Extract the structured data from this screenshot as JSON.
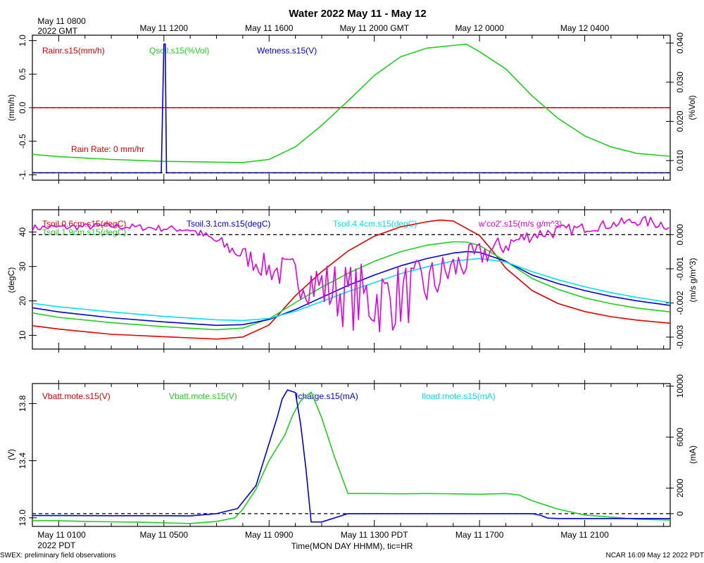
{
  "title": "Water 2022 May 11 - May 12",
  "time_axis": {
    "top_labels": [
      {
        "t": 0,
        "line1": "May 11 0800",
        "line2": "2022 GMT"
      },
      {
        "t": 4,
        "line1": "May 11 1200"
      },
      {
        "t": 8,
        "line1": "May 11 1600"
      },
      {
        "t": 12,
        "line1": "May 11 2000 GMT"
      },
      {
        "t": 16,
        "line1": "May 12 0000"
      },
      {
        "t": 20,
        "line1": "May 12 0400"
      }
    ],
    "bottom_labels": [
      {
        "t": 0,
        "line1": "May 11 0100",
        "line2": "2022 PDT"
      },
      {
        "t": 4,
        "line1": "May 11 0500"
      },
      {
        "t": 8,
        "line1": "May 11 0900"
      },
      {
        "t": 12,
        "line1": "May 11 1300 PDT"
      },
      {
        "t": 16,
        "line1": "May 11 1700"
      },
      {
        "t": 20,
        "line1": "May 11 2100"
      }
    ],
    "xlabel": "Time(MON DAY HHMM), tic=HR",
    "range_hours": [
      -1,
      23.25
    ]
  },
  "footer": {
    "left": "SWEX: preliminary field observations",
    "right": "NCAR 16:09 May 12 2022 PDT"
  },
  "colors": {
    "red": "#e00000",
    "green": "#1ed01e",
    "blue": "#0000d8",
    "cyan": "#00e0ee",
    "magenta": "#e000e0"
  },
  "chart_data": [
    {
      "type": "line",
      "panel": "rain-wetness",
      "ylabel_left": "(mm/h)",
      "ylabel_right": "(%Vol)",
      "ylim_left": [
        -1.08,
        1.08
      ],
      "ylim_right": [
        0.005,
        0.042
      ],
      "yticks_left": [
        "1.0",
        "0.5",
        "0.0",
        "-0.5",
        "-1."
      ],
      "yticks_left_values": [
        1.0,
        0.5,
        0.0,
        -0.5,
        -1.0
      ],
      "yticks_right": [
        "0.040",
        "0.030",
        "0.020",
        "0.010"
      ],
      "yticks_right_values": [
        0.04,
        0.03,
        0.02,
        0.01
      ],
      "legend": [
        "Rainr.s15(mm/h)",
        "Qsoil.s15(%Vol)",
        "Wetness.s15(V)"
      ],
      "annotation": "Rain Rate: 0 mm/hr",
      "baseline_left": 0.0,
      "series": [
        {
          "name": "Rainr.s15(mm/h)",
          "axis": "left",
          "color": "red",
          "x": [
            -1,
            23.25
          ],
          "y": [
            0.0,
            0.0
          ]
        },
        {
          "name": "Qsoil.s15(%Vol)",
          "axis": "right",
          "color": "green",
          "x": [
            -1,
            0,
            2,
            4,
            5,
            6,
            7,
            8,
            9,
            10,
            11,
            12,
            13,
            14,
            15,
            15.5,
            16,
            17,
            18,
            19,
            20,
            21,
            22,
            23.25
          ],
          "y": [
            0.0116,
            0.011,
            0.0103,
            0.0098,
            0.0097,
            0.0096,
            0.0095,
            0.0103,
            0.0135,
            0.019,
            0.0252,
            0.0317,
            0.0365,
            0.0387,
            0.0394,
            0.0397,
            0.0378,
            0.0334,
            0.0265,
            0.0207,
            0.0163,
            0.0135,
            0.0118,
            0.0111
          ]
        },
        {
          "name": "Wetness.s15(V)",
          "axis": "left",
          "color": "blue",
          "x": [
            -1,
            3.9,
            4.0,
            4.05,
            4.1,
            23.25
          ],
          "y": [
            -0.97,
            -0.97,
            0.95,
            0.95,
            -0.97,
            -0.97
          ]
        },
        {
          "name": "Wetness baseline",
          "axis": "left",
          "color": "black",
          "dashed": true,
          "x": [
            -1,
            23.25
          ],
          "y": [
            -0.97,
            -0.97
          ]
        }
      ]
    },
    {
      "type": "line",
      "panel": "soil-temperature",
      "ylabel_left": "(degC)",
      "ylabel_right": "(m/s g/m^3)",
      "ylim_left": [
        6.0,
        46.5
      ],
      "ylim_right": [
        -0.00335,
        0.00073
      ],
      "yticks_left": [
        "40",
        "30",
        "20",
        "10"
      ],
      "yticks_left_values": [
        40,
        30,
        20,
        10
      ],
      "yticks_right": [
        "0.000",
        "-0.001",
        "-0.002",
        "-0.003"
      ],
      "yticks_right_values": [
        0.0,
        -0.001,
        -0.002,
        -0.003
      ],
      "legend": [
        "Tsoil.0.6cm.s15(degC)",
        "Tsoil.1.9cm.s15(degC)",
        "Tsoil.3.1cm.s15(degC)",
        "Tsoil.4.4cm.s15(degC)",
        "w'co2'.s15(m/s g/m^3)"
      ],
      "baseline_right": 0.0,
      "series": [
        {
          "name": "Tsoil.0.6cm.s15(degC)",
          "axis": "left",
          "color": "red",
          "x": [
            -1,
            0,
            2,
            4,
            6,
            7,
            8,
            9,
            10,
            11,
            12,
            13,
            14,
            14.5,
            15,
            16,
            16.5,
            17,
            18,
            19,
            20,
            21,
            22,
            23.25
          ],
          "y": [
            12.8,
            11.8,
            10.3,
            9.6,
            8.9,
            9.5,
            13.0,
            21.5,
            28.5,
            34.5,
            38.8,
            41.5,
            43.0,
            43.5,
            43.2,
            39.0,
            34.5,
            29.5,
            23.0,
            19.2,
            16.9,
            15.4,
            14.4,
            13.5
          ]
        },
        {
          "name": "Tsoil.1.9cm.s15(degC)",
          "axis": "left",
          "color": "green",
          "x": [
            -1,
            0,
            2,
            4,
            6,
            7,
            8,
            9,
            10,
            11,
            12,
            13,
            14,
            15,
            15.5,
            16,
            17,
            18,
            19,
            20,
            21,
            22,
            23.25
          ],
          "y": [
            16.5,
            15.2,
            13.7,
            12.5,
            11.6,
            12.1,
            14.8,
            19.5,
            24.0,
            28.0,
            31.5,
            34.3,
            36.2,
            37.2,
            37.1,
            36.1,
            31.5,
            26.5,
            23.3,
            20.9,
            19.2,
            17.9,
            16.8
          ]
        },
        {
          "name": "Tsoil.3.1cm.s15(degC)",
          "axis": "left",
          "color": "blue",
          "x": [
            -1,
            0,
            2,
            4,
            6,
            7,
            8,
            9,
            10,
            11,
            12,
            13,
            14,
            15,
            15.5,
            16,
            17,
            18,
            19,
            20,
            21,
            22,
            23.25
          ],
          "y": [
            18.0,
            16.8,
            15.1,
            13.9,
            12.9,
            13.1,
            14.6,
            17.5,
            21.0,
            24.5,
            27.5,
            30.2,
            32.3,
            33.9,
            34.3,
            34.1,
            31.5,
            27.5,
            25.0,
            23.0,
            21.3,
            20.0,
            18.7
          ]
        },
        {
          "name": "Tsoil.4.4cm.s15(degC)",
          "axis": "left",
          "color": "cyan",
          "x": [
            -1,
            0,
            2,
            4,
            6,
            7,
            8,
            9,
            10,
            11,
            12,
            13,
            14,
            15,
            16,
            17,
            18,
            19,
            20,
            21,
            22,
            23.25
          ],
          "y": [
            19.3,
            18.3,
            16.8,
            15.5,
            14.5,
            14.3,
            14.9,
            17.0,
            19.8,
            22.7,
            25.3,
            27.9,
            29.9,
            31.6,
            32.3,
            31.3,
            28.5,
            26.1,
            24.1,
            22.4,
            21.0,
            19.5
          ]
        },
        {
          "name": "w'co2'.s15(m/s g/m^3)",
          "axis": "right",
          "color": "magenta",
          "noise": true,
          "x": [
            -1,
            2,
            5,
            6,
            7,
            8,
            9,
            10,
            11,
            12,
            13,
            14,
            15,
            16,
            17,
            18,
            19,
            20,
            21,
            22,
            23.25
          ],
          "y": [
            0.0002,
            0.00025,
            0.00015,
            -0.0002,
            -0.0006,
            -0.001,
            -0.0012,
            -0.0015,
            -0.0018,
            -0.0019,
            -0.0018,
            -0.0015,
            -0.001,
            -0.0006,
            -0.0003,
            0.0,
            0.0001,
            0.0002,
            0.0003,
            0.0004,
            0.0003
          ],
          "amp": [
            0.0001,
            0.0001,
            0.0001,
            0.0002,
            0.0003,
            0.0004,
            0.0006,
            0.0008,
            0.001,
            0.0011,
            0.001,
            0.0008,
            0.0006,
            0.0004,
            0.0003,
            0.0002,
            0.0002,
            0.00015,
            0.00015,
            0.00015,
            0.0002
          ]
        }
      ]
    },
    {
      "type": "line",
      "panel": "battery-current",
      "ylabel_left": "(V)",
      "ylabel_right": "(mA)",
      "ylim_left": [
        12.94,
        13.94
      ],
      "ylim_right": [
        -1000,
        10200
      ],
      "yticks_left": [
        "13.8",
        "13.4",
        "13.0"
      ],
      "yticks_left_values": [
        13.8,
        13.4,
        13.0
      ],
      "yticks_right": [
        "10000",
        "6000",
        "2000",
        "0"
      ],
      "yticks_right_values": [
        10000,
        6000,
        2000,
        0
      ],
      "legend": [
        "Vbatt.mote.s15(V)",
        "Vbatt.mote.s15(V)",
        "Icharge.s15(mA)",
        "Iload.mote.s15(mA)"
      ],
      "baseline_right": 0,
      "series": [
        {
          "name": "Vbatt.mote.s15(V)",
          "axis": "left",
          "color": "green",
          "x": [
            -1,
            0,
            1,
            2,
            3,
            4,
            5,
            6,
            6.7,
            7,
            7.5,
            8,
            8.6,
            8.9,
            9.2,
            9.6,
            10,
            10.5,
            11,
            12,
            13,
            14,
            15,
            16,
            17,
            17.5,
            18,
            19,
            20,
            21,
            22,
            23.25
          ],
          "y": [
            12.98,
            12.98,
            12.975,
            12.972,
            12.97,
            12.965,
            12.96,
            12.975,
            13.0,
            13.06,
            13.2,
            13.4,
            13.58,
            13.72,
            13.82,
            13.88,
            13.7,
            13.42,
            13.17,
            13.17,
            13.168,
            13.17,
            13.168,
            13.165,
            13.17,
            13.16,
            13.12,
            13.06,
            13.02,
            13.005,
            12.99,
            12.985
          ]
        },
        {
          "name": "Icharge.s15(mA)",
          "axis": "right",
          "color": "blue",
          "x": [
            -1,
            0,
            2,
            4,
            5,
            6,
            6.8,
            7.5,
            8,
            8.3,
            8.5,
            8.7,
            9.0,
            9.2,
            9.4,
            9.6,
            10,
            11,
            12,
            13,
            14,
            15,
            16,
            17,
            18,
            18.3,
            18.6,
            19,
            20,
            21,
            22,
            23.25
          ],
          "y": [
            -150,
            -150,
            -160,
            -160,
            -180,
            0,
            400,
            2200,
            5500,
            7500,
            9000,
            9700,
            9500,
            7000,
            3500,
            -650,
            -650,
            0,
            0,
            0,
            0,
            0,
            0,
            0,
            0,
            -120,
            -350,
            -380,
            -380,
            -380,
            -380,
            -380
          ]
        },
        {
          "name": "Iload.mote.s15(mA)",
          "axis": "right",
          "color": "cyan",
          "x": [],
          "y": []
        }
      ]
    }
  ]
}
